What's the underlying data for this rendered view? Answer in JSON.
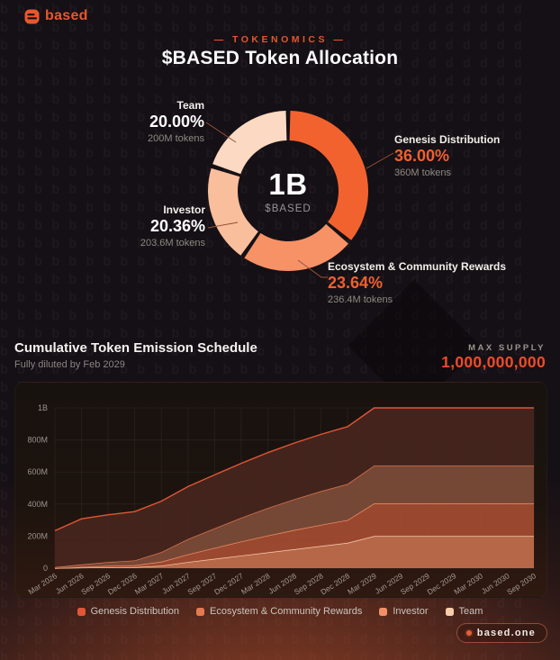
{
  "header": {
    "brand": "based"
  },
  "allocation": {
    "eyebrow": "— TOKENOMICS —",
    "title": "$BASED Token Allocation"
  },
  "emission": {
    "title": "Cumulative Token Emission Schedule",
    "subtitle": "Fully diluted by Feb 2029",
    "max_supply_label": "MAX SUPPLY",
    "max_supply_value": "1,000,000,000"
  },
  "footer": {
    "site": "based.one"
  },
  "colors": {
    "accent": "#E8572E",
    "max_supply": "#ED4C29",
    "page_bg": "#151015",
    "panel_bg": "#18120f"
  },
  "chart_data": [
    {
      "type": "pie",
      "style": "donut",
      "center_value": "1B",
      "center_label": "$BASED",
      "segments": [
        {
          "name": "Genesis Distribution",
          "pct": 36.0,
          "pct_label": "36.00%",
          "tokens_label": "360M tokens",
          "color": "#F2622F",
          "pct_color": "#F0602E"
        },
        {
          "name": "Ecosystem & Community Rewards",
          "pct": 23.64,
          "pct_label": "23.64%",
          "tokens_label": "236.4M tokens",
          "color": "#F79166",
          "pct_color": "#F0602E"
        },
        {
          "name": "Investor",
          "pct": 20.36,
          "pct_label": "20.36%",
          "tokens_label": "203.6M tokens",
          "color": "#F9BE9C",
          "pct_color": "#FFFFFF"
        },
        {
          "name": "Team",
          "pct": 20.0,
          "pct_label": "20.00%",
          "tokens_label": "200M tokens",
          "color": "#FBD9C2",
          "pct_color": "#FFFFFF"
        }
      ]
    },
    {
      "type": "area",
      "stacked": true,
      "title": "Cumulative Token Emission Schedule",
      "unit": "M tokens",
      "ylim": [
        0,
        1000
      ],
      "yticks": [
        0,
        200,
        400,
        600,
        800,
        1000
      ],
      "ytick_labels": [
        "0",
        "200M",
        "400M",
        "600M",
        "800M",
        "1B"
      ],
      "grid": true,
      "legend_position": "bottom",
      "x_labels": [
        "Mar 2026",
        "Jun 2026",
        "Sep 2026",
        "Dec 2026",
        "Mar 2027",
        "Jun 2027",
        "Sep 2027",
        "Dec 2027",
        "Mar 2028",
        "Jun 2028",
        "Sep 2028",
        "Dec 2028",
        "Mar 2029",
        "Jun 2029",
        "Sep 2029",
        "Dec 2029",
        "Mar 2030",
        "Jun 2030",
        "Sep 2030"
      ],
      "series": [
        {
          "name": "Genesis Distribution",
          "total": 360,
          "fill": "#46251D",
          "stroke": "#E05636",
          "values": [
            228,
            285,
            295,
            305,
            318,
            328,
            334,
            340,
            346,
            351,
            355,
            358,
            360,
            360,
            360,
            360,
            360,
            360,
            360
          ]
        },
        {
          "name": "Ecosystem & Community Rewards",
          "total": 236.4,
          "fill": "#7A4A38",
          "stroke": "#E57950",
          "values": [
            6,
            15,
            24,
            30,
            60,
            95,
            122,
            148,
            172,
            192,
            210,
            225,
            236.4,
            236.4,
            236.4,
            236.4,
            236.4,
            236.4,
            236.4
          ]
        },
        {
          "name": "Investor",
          "total": 203.6,
          "fill": "#A04B31",
          "stroke": "#F09066",
          "values": [
            0,
            5,
            9,
            12,
            25,
            48,
            68,
            88,
            105,
            120,
            132,
            142,
            203.6,
            203.6,
            203.6,
            203.6,
            203.6,
            203.6,
            203.6
          ]
        },
        {
          "name": "Team",
          "total": 200,
          "fill": "#BE6C4C",
          "stroke": "#F7CDAA",
          "values": [
            0,
            3,
            5,
            6,
            15,
            38,
            58,
            78,
            98,
            118,
            138,
            158,
            200,
            200,
            200,
            200,
            200,
            200,
            200
          ]
        }
      ],
      "stack_order_bottom_to_top": [
        "Team",
        "Investor",
        "Ecosystem & Community Rewards",
        "Genesis Distribution"
      ]
    }
  ]
}
